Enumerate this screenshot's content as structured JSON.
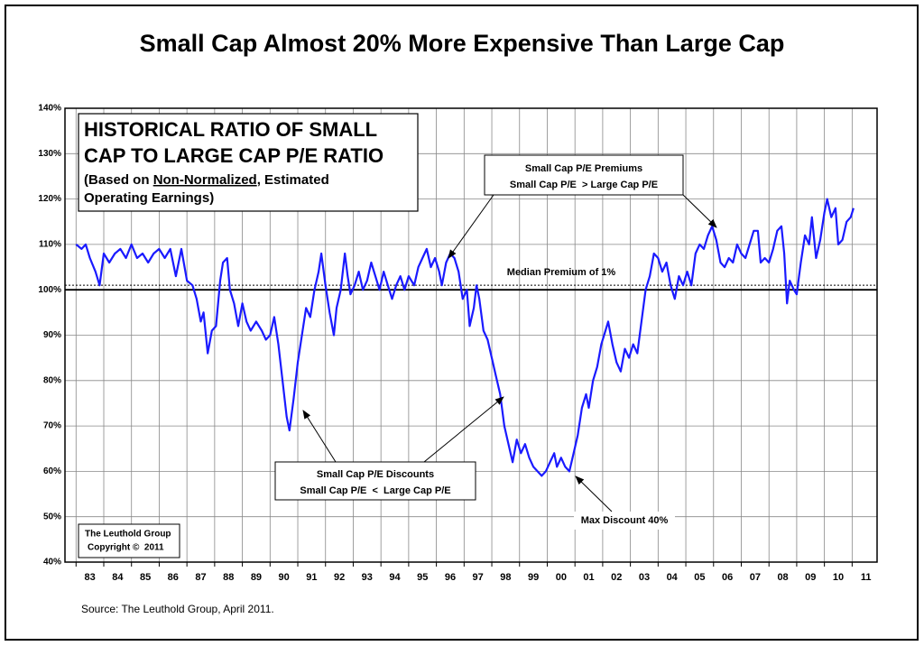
{
  "chart_data": {
    "type": "line",
    "title": "Small Cap Almost 20% More Expensive Than Large Cap",
    "box_title_lines": [
      "HISTORICAL RATIO OF SMALL",
      "CAP TO LARGE CAP P/E RATIO"
    ],
    "box_note": {
      "before": "(Based on ",
      "underlined": "Non-Normalized",
      "after": ", Estimated",
      "line2": "Operating Earnings)"
    },
    "premium_note": [
      "Small Cap P/E Premiums",
      "Small Cap P/E  > Large Cap P/E"
    ],
    "discount_note": [
      "Small Cap P/E Discounts",
      "Small Cap P/E  <  Large Cap P/E"
    ],
    "max_discount_note": "Max Discount 40%",
    "credit": [
      "The Leuthold Group",
      "Copyright ©  2011"
    ],
    "source": "Source:  The Leuthold Group, April 2011.",
    "median_line": {
      "value": 101,
      "label": "Median Premium of 1%"
    },
    "reference_line": 100,
    "xlim": [
      1982.6,
      2011.9
    ],
    "xticks": [
      {
        "value": 1983.5,
        "label": "83"
      },
      {
        "value": 1984.5,
        "label": "84"
      },
      {
        "value": 1985.5,
        "label": "85"
      },
      {
        "value": 1986.5,
        "label": "86"
      },
      {
        "value": 1987.5,
        "label": "87"
      },
      {
        "value": 1988.5,
        "label": "88"
      },
      {
        "value": 1989.5,
        "label": "89"
      },
      {
        "value": 1990.5,
        "label": "90"
      },
      {
        "value": 1991.5,
        "label": "91"
      },
      {
        "value": 1992.5,
        "label": "92"
      },
      {
        "value": 1993.5,
        "label": "93"
      },
      {
        "value": 1994.5,
        "label": "94"
      },
      {
        "value": 1995.5,
        "label": "95"
      },
      {
        "value": 1996.5,
        "label": "96"
      },
      {
        "value": 1997.5,
        "label": "97"
      },
      {
        "value": 1998.5,
        "label": "98"
      },
      {
        "value": 1999.5,
        "label": "99"
      },
      {
        "value": 2000.5,
        "label": "00"
      },
      {
        "value": 2001.5,
        "label": "01"
      },
      {
        "value": 2002.5,
        "label": "02"
      },
      {
        "value": 2003.5,
        "label": "03"
      },
      {
        "value": 2004.5,
        "label": "04"
      },
      {
        "value": 2005.5,
        "label": "05"
      },
      {
        "value": 2006.5,
        "label": "06"
      },
      {
        "value": 2007.5,
        "label": "07"
      },
      {
        "value": 2008.5,
        "label": "08"
      },
      {
        "value": 2009.5,
        "label": "09"
      },
      {
        "value": 2010.5,
        "label": "10"
      },
      {
        "value": 2011.5,
        "label": "11"
      }
    ],
    "xgrid": [
      1983,
      1984,
      1985,
      1986,
      1987,
      1988,
      1989,
      1990,
      1991,
      1992,
      1993,
      1994,
      1995,
      1996,
      1997,
      1998,
      1999,
      2000,
      2001,
      2002,
      2003,
      2004,
      2005,
      2006,
      2007,
      2008,
      2009,
      2010,
      2011
    ],
    "ylim": [
      40,
      140
    ],
    "yticks": [
      {
        "value": 40,
        "label": "40%"
      },
      {
        "value": 50,
        "label": "50%"
      },
      {
        "value": 60,
        "label": "60%"
      },
      {
        "value": 70,
        "label": "70%"
      },
      {
        "value": 80,
        "label": "80%"
      },
      {
        "value": 90,
        "label": "90%"
      },
      {
        "value": 100,
        "label": "100%"
      },
      {
        "value": 110,
        "label": "110%"
      },
      {
        "value": 120,
        "label": "120%"
      },
      {
        "value": 130,
        "label": "130%"
      },
      {
        "value": 140,
        "label": "140%"
      }
    ],
    "grid": true,
    "series": [
      {
        "color": "#1a1aff",
        "x": [
          1983.0,
          1983.2,
          1983.35,
          1983.5,
          1983.7,
          1983.85,
          1984.0,
          1984.2,
          1984.4,
          1984.6,
          1984.8,
          1985.0,
          1985.2,
          1985.4,
          1985.6,
          1985.8,
          1986.0,
          1986.2,
          1986.4,
          1986.6,
          1986.8,
          1987.0,
          1987.2,
          1987.35,
          1987.5,
          1987.6,
          1987.75,
          1987.9,
          1988.05,
          1988.2,
          1988.3,
          1988.45,
          1988.55,
          1988.7,
          1988.85,
          1989.0,
          1989.15,
          1989.3,
          1989.5,
          1989.7,
          1989.85,
          1990.0,
          1990.15,
          1990.3,
          1990.45,
          1990.6,
          1990.7,
          1990.85,
          1991.0,
          1991.15,
          1991.3,
          1991.45,
          1991.6,
          1991.75,
          1991.85,
          1992.0,
          1992.15,
          1992.3,
          1992.4,
          1992.55,
          1992.7,
          1992.8,
          1992.9,
          1993.05,
          1993.2,
          1993.35,
          1993.5,
          1993.65,
          1993.8,
          1993.95,
          1994.1,
          1994.25,
          1994.4,
          1994.55,
          1994.7,
          1994.85,
          1995.0,
          1995.2,
          1995.35,
          1995.5,
          1995.65,
          1995.8,
          1995.95,
          1996.1,
          1996.2,
          1996.35,
          1996.5,
          1996.65,
          1996.8,
          1996.95,
          1997.1,
          1997.2,
          1997.35,
          1997.45,
          1997.55,
          1997.7,
          1997.85,
          1998.0,
          1998.15,
          1998.3,
          1998.45,
          1998.6,
          1998.75,
          1998.9,
          1999.05,
          1999.2,
          1999.35,
          1999.5,
          1999.65,
          1999.8,
          1999.95,
          2000.1,
          2000.25,
          2000.35,
          2000.5,
          2000.65,
          2000.8,
          2000.95,
          2001.1,
          2001.25,
          2001.4,
          2001.5,
          2001.65,
          2001.8,
          2001.95,
          2002.1,
          2002.2,
          2002.35,
          2002.5,
          2002.65,
          2002.8,
          2002.95,
          2003.1,
          2003.25,
          2003.4,
          2003.55,
          2003.7,
          2003.85,
          2004.0,
          2004.15,
          2004.3,
          2004.45,
          2004.6,
          2004.75,
          2004.9,
          2005.05,
          2005.2,
          2005.35,
          2005.5,
          2005.65,
          2005.8,
          2005.95,
          2006.1,
          2006.25,
          2006.4,
          2006.55,
          2006.7,
          2006.85,
          2007.0,
          2007.15,
          2007.3,
          2007.45,
          2007.6,
          2007.7,
          2007.85,
          2008.0,
          2008.15,
          2008.3,
          2008.45,
          2008.55,
          2008.65,
          2008.75,
          2008.9,
          2009.0,
          2009.15,
          2009.3,
          2009.45,
          2009.55,
          2009.7,
          2009.85,
          2010.0,
          2010.1,
          2010.25,
          2010.4,
          2010.5,
          2010.65,
          2010.8,
          2010.95,
          2011.05
        ],
        "values": [
          110,
          109,
          110,
          107,
          104,
          101,
          108,
          106,
          108,
          109,
          107,
          110,
          107,
          108,
          106,
          108,
          109,
          107,
          109,
          103,
          109,
          102,
          101,
          98,
          93,
          95,
          86,
          91,
          92,
          102,
          106,
          107,
          100,
          97,
          92,
          97,
          93,
          91,
          93,
          91,
          89,
          90,
          94,
          88,
          80,
          72,
          69,
          76,
          84,
          90,
          96,
          94,
          100,
          104,
          108,
          101,
          95,
          90,
          96,
          100,
          108,
          103,
          99,
          101,
          104,
          100,
          102,
          106,
          103,
          100,
          104,
          101,
          98,
          101,
          103,
          100,
          103,
          101,
          105,
          107,
          109,
          105,
          107,
          104,
          101,
          106,
          108,
          107,
          104,
          98,
          100,
          92,
          96,
          101,
          98,
          91,
          89,
          85,
          81,
          77,
          70,
          66,
          62,
          67,
          64,
          66,
          63,
          61,
          60,
          59,
          60,
          62,
          64,
          61,
          63,
          61,
          60,
          64,
          68,
          74,
          77,
          74,
          80,
          83,
          88,
          91,
          93,
          88,
          84,
          82,
          87,
          85,
          88,
          86,
          93,
          100,
          103,
          108,
          107,
          104,
          106,
          101,
          98,
          103,
          101,
          104,
          101,
          108,
          110,
          109,
          112,
          114,
          111,
          106,
          105,
          107,
          106,
          110,
          108,
          107,
          110,
          113,
          113,
          106,
          107,
          106,
          109,
          113,
          114,
          108,
          97,
          102,
          100,
          99,
          106,
          112,
          110,
          116,
          107,
          111,
          117,
          120,
          116,
          118,
          110,
          111,
          115,
          116,
          118
        ]
      }
    ]
  }
}
